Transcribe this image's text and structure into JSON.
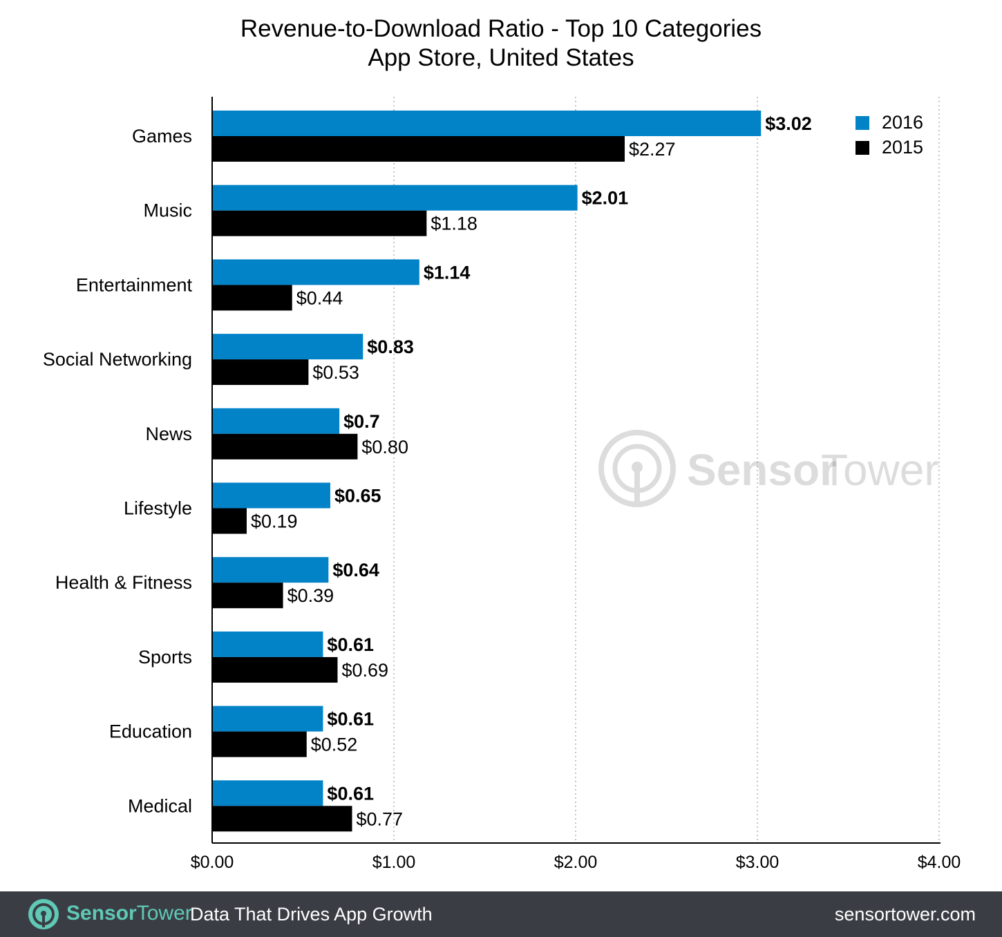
{
  "title": "Revenue-to-Download Ratio - Top 10 Categories",
  "subtitle": "App Store, United States",
  "colors": {
    "series_2016": "#0283c8",
    "series_2015": "#000000",
    "footer_bg": "#3a3e44",
    "brand_accent": "#5fc9b6"
  },
  "chart_data": {
    "type": "bar",
    "orientation": "horizontal",
    "title": "Revenue-to-Download Ratio - Top 10 Categories",
    "subtitle": "App Store, United States",
    "categories": [
      "Games",
      "Music",
      "Entertainment",
      "Social Networking",
      "News",
      "Lifestyle",
      "Health & Fitness",
      "Sports",
      "Education",
      "Medical"
    ],
    "series": [
      {
        "name": "2016",
        "values": [
          3.02,
          2.01,
          1.14,
          0.83,
          0.7,
          0.65,
          0.64,
          0.61,
          0.61,
          0.61
        ],
        "labels": [
          "$3.02",
          "$2.01",
          "$1.14",
          "$0.83",
          "$0.7",
          "$0.65",
          "$0.64",
          "$0.61",
          "$0.61",
          "$0.61"
        ]
      },
      {
        "name": "2015",
        "values": [
          2.27,
          1.18,
          0.44,
          0.53,
          0.8,
          0.19,
          0.39,
          0.69,
          0.52,
          0.77
        ],
        "labels": [
          "$2.27",
          "$1.18",
          "$0.44",
          "$0.53",
          "$0.80",
          "$0.19",
          "$0.39",
          "$0.69",
          "$0.52",
          "$0.77"
        ]
      }
    ],
    "xlim": [
      0,
      4
    ],
    "xticks": [
      0,
      1,
      2,
      3,
      4
    ],
    "xtick_labels": [
      "$0.00",
      "$1.00",
      "$2.00",
      "$3.00",
      "$4.00"
    ],
    "grid": "vertical dotted",
    "legend_position": "top-right"
  },
  "legend": {
    "items": [
      {
        "label": "2016"
      },
      {
        "label": "2015"
      }
    ]
  },
  "watermark": {
    "name_bold": "Sensor",
    "name_light": "Tower"
  },
  "footer": {
    "brand_bold": "Sensor",
    "brand_light": "Tower",
    "tagline": "Data That Drives App Growth",
    "website": "sensortower.com"
  }
}
